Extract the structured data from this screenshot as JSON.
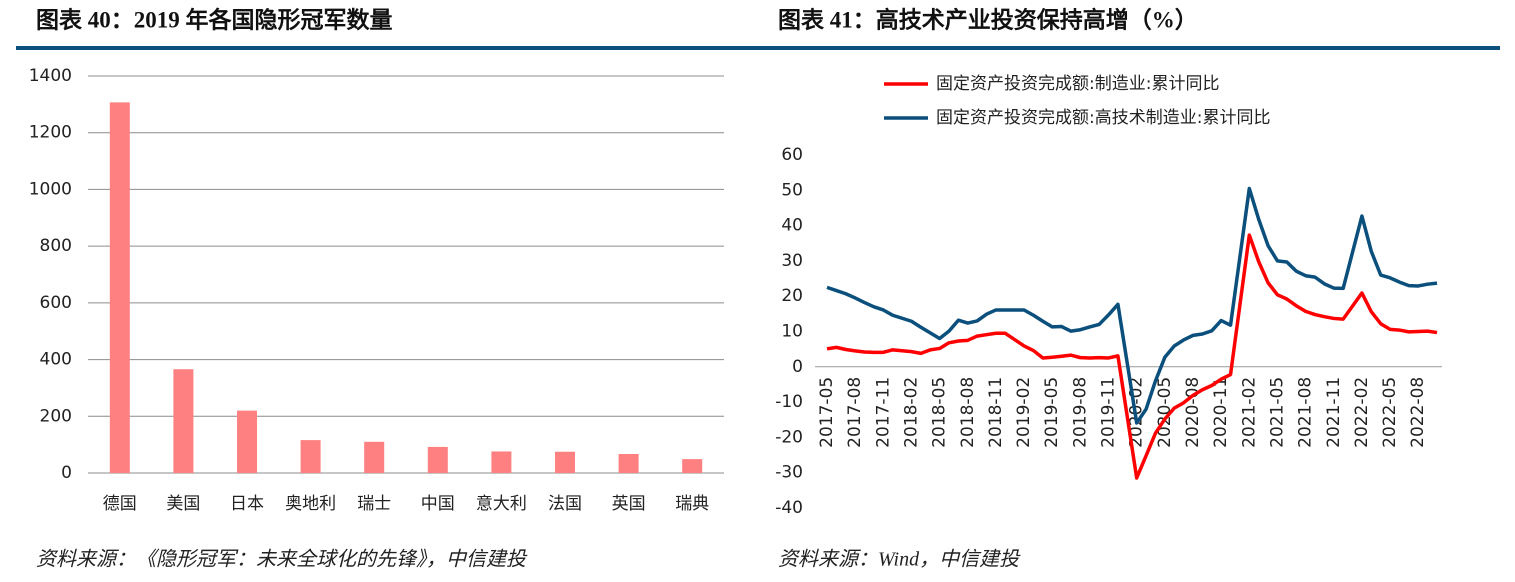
{
  "chart_data": [
    {
      "type": "bar",
      "title": "图表 40：2019 年各国隐形冠军数量",
      "source": "资料来源：《隐形冠军：未来全球化的先锋》，中信建投",
      "categories": [
        "德国",
        "美国",
        "日本",
        "奥地利",
        "瑞士",
        "中国",
        "意大利",
        "法国",
        "英国",
        "瑞典"
      ],
      "values": [
        1307,
        366,
        220,
        116,
        110,
        92,
        76,
        75,
        67,
        49
      ],
      "color": "#ff8080",
      "ylim": [
        0,
        1400
      ],
      "yticks": [
        0,
        200,
        400,
        600,
        800,
        1000,
        1200,
        1400
      ],
      "grid": true
    },
    {
      "type": "line",
      "title": "图表 41：高技术产业投资保持高增（%）",
      "source": "资料来源：Wind，中信建投",
      "legend": "top",
      "x": [
        "2017-05",
        "2017-06",
        "2017-07",
        "2017-08",
        "2017-09",
        "2017-10",
        "2017-11",
        "2017-12",
        "2018-02",
        "2018-03",
        "2018-04",
        "2018-05",
        "2018-06",
        "2018-07",
        "2018-08",
        "2018-09",
        "2018-10",
        "2018-11",
        "2018-12",
        "2019-02",
        "2019-03",
        "2019-04",
        "2019-05",
        "2019-06",
        "2019-07",
        "2019-08",
        "2019-09",
        "2019-10",
        "2019-11",
        "2019-12",
        "2020-02",
        "2020-03",
        "2020-04",
        "2020-05",
        "2020-06",
        "2020-07",
        "2020-08",
        "2020-09",
        "2020-10",
        "2020-11",
        "2020-12",
        "2021-02",
        "2021-03",
        "2021-04",
        "2021-05",
        "2021-06",
        "2021-07",
        "2021-08",
        "2021-09",
        "2021-10",
        "2021-11",
        "2021-12",
        "2022-02",
        "2022-03",
        "2022-04",
        "2022-05",
        "2022-06",
        "2022-07",
        "2022-08",
        "2022-09",
        "2022-10"
      ],
      "series": [
        {
          "name": "固定资产投资完成额:制造业:累计同比",
          "color": "#ff0000",
          "values": [
            5.1,
            5.5,
            4.9,
            4.5,
            4.2,
            4.1,
            4.1,
            4.8,
            4.3,
            3.8,
            4.8,
            5.2,
            6.8,
            7.3,
            7.5,
            8.7,
            9.1,
            9.5,
            9.5,
            5.9,
            4.6,
            2.5,
            2.7,
            3.0,
            3.3,
            2.6,
            2.5,
            2.6,
            2.5,
            3.1,
            -31.5,
            -25.2,
            -18.8,
            -14.8,
            -11.7,
            -10.2,
            -8.1,
            -6.5,
            -5.3,
            -3.5,
            -2.2,
            37.3,
            29.8,
            23.8,
            20.4,
            19.2,
            17.3,
            15.7,
            14.8,
            14.2,
            13.7,
            13.5,
            20.9,
            15.6,
            12.2,
            10.6,
            10.4,
            9.9,
            10.0,
            10.1,
            9.7
          ]
        },
        {
          "name": "固定资产投资完成额:高技术制造业:累计同比",
          "color": "#0b4f7c",
          "values": [
            22.5,
            21.6,
            20.7,
            19.5,
            18.2,
            17.0,
            16.1,
            14.6,
            12.9,
            11.2,
            9.6,
            8.0,
            10.1,
            13.2,
            12.4,
            13.0,
            14.9,
            16.1,
            16.1,
            16.1,
            14.6,
            12.9,
            11.3,
            11.4,
            10.1,
            10.5,
            11.3,
            12.0,
            14.7,
            17.7,
            -15.9,
            -12.0,
            -4.0,
            2.7,
            5.9,
            7.6,
            8.9,
            9.3,
            10.2,
            13.1,
            11.8,
            50.5,
            41.8,
            34.3,
            30.0,
            29.7,
            27.1,
            25.8,
            25.4,
            23.5,
            22.3,
            22.2,
            42.7,
            32.7,
            26.0,
            25.2,
            24.0,
            23.0,
            22.9,
            23.4,
            23.7
          ]
        }
      ],
      "xlim": [
        "2017-05",
        "2022-10"
      ],
      "xticks": [
        "2017-05",
        "2017-08",
        "2017-11",
        "2018-02",
        "2018-05",
        "2018-08",
        "2018-11",
        "2019-02",
        "2019-05",
        "2019-08",
        "2019-11",
        "2020-02",
        "2020-05",
        "2020-08",
        "2020-11",
        "2021-02",
        "2021-05",
        "2021-08",
        "2021-11",
        "2022-02",
        "2022-05",
        "2022-08"
      ],
      "ylim": [
        -40,
        60
      ],
      "yticks": [
        -40,
        -30,
        -20,
        -10,
        0,
        10,
        20,
        30,
        40,
        50,
        60
      ]
    }
  ]
}
